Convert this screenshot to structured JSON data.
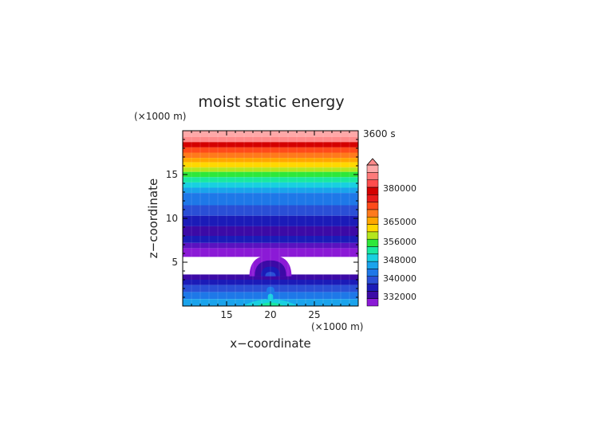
{
  "chart_data": {
    "type": "heatmap",
    "title": "moist static energy",
    "xlabel": "x−coordinate",
    "ylabel": "z−coordinate",
    "x_unit": "(×1000 m)",
    "y_unit": "(×1000 m)",
    "time_label": "3600 s",
    "xlim": [
      10,
      30
    ],
    "ylim": [
      0,
      20
    ],
    "x_ticks": [
      "15",
      "20",
      "25"
    ],
    "y_ticks": [
      "5",
      "10",
      "15"
    ],
    "colorbar": {
      "tick_labels": [
        "380000",
        "365000",
        "356000",
        "348000",
        "340000",
        "332000"
      ],
      "colors": [
        "#8b1ad6",
        "#3c0aa6",
        "#1b1bb8",
        "#2a4fd6",
        "#1e78e8",
        "#1aa3ec",
        "#18d0e0",
        "#19e8a0",
        "#2ee83a",
        "#b4e61e",
        "#ffd800",
        "#ffa600",
        "#ff7a1c",
        "#ff4a1a",
        "#e81a1a",
        "#d40000",
        "#ff4d4d",
        "#ff7a7a",
        "#ffa8a8"
      ],
      "extend": "max"
    },
    "bands": [
      {
        "z0": 19.3,
        "z1": 20.0,
        "color": "#ffa8a8"
      },
      {
        "z0": 18.7,
        "z1": 19.3,
        "color": "#ff8a8a"
      },
      {
        "z0": 18.1,
        "z1": 18.7,
        "color": "#d40000"
      },
      {
        "z0": 17.5,
        "z1": 18.1,
        "color": "#ff4a1a"
      },
      {
        "z0": 16.9,
        "z1": 17.5,
        "color": "#ff7a1c"
      },
      {
        "z0": 16.4,
        "z1": 16.9,
        "color": "#ffa600"
      },
      {
        "z0": 15.8,
        "z1": 16.4,
        "color": "#ffd800"
      },
      {
        "z0": 15.3,
        "z1": 15.8,
        "color": "#b4e61e"
      },
      {
        "z0": 14.7,
        "z1": 15.3,
        "color": "#2ee83a"
      },
      {
        "z0": 14.1,
        "z1": 14.7,
        "color": "#19e8a0"
      },
      {
        "z0": 13.5,
        "z1": 14.1,
        "color": "#18d0e0"
      },
      {
        "z0": 12.9,
        "z1": 13.5,
        "color": "#1aa3ec"
      },
      {
        "z0": 11.5,
        "z1": 12.9,
        "color": "#1e78e8"
      },
      {
        "z0": 10.3,
        "z1": 11.5,
        "color": "#2a4fd6"
      },
      {
        "z0": 9.1,
        "z1": 10.3,
        "color": "#1b1bb8"
      },
      {
        "z0": 8.0,
        "z1": 9.1,
        "color": "#3c0aa6"
      },
      {
        "z0": 7.2,
        "z1": 8.0,
        "color": "#1b1bb8"
      },
      {
        "z0": 6.6,
        "z1": 7.2,
        "color": "#5a12c0"
      },
      {
        "z0": 5.6,
        "z1": 6.6,
        "color": "#8b1ad6"
      },
      {
        "z0": 3.6,
        "z1": 5.6,
        "color": "#ffffff"
      },
      {
        "z0": 3.0,
        "z1": 3.6,
        "color": "#3c0aa6"
      },
      {
        "z0": 2.4,
        "z1": 3.0,
        "color": "#1b1bb8"
      },
      {
        "z0": 1.6,
        "z1": 2.4,
        "color": "#2a4fd6"
      },
      {
        "z0": 0.8,
        "z1": 1.6,
        "color": "#1e78e8"
      },
      {
        "z0": 0.0,
        "z1": 0.8,
        "color": "#1aa3ec"
      }
    ],
    "plume": {
      "x_center": 20.0,
      "layers": [
        {
          "half_width": 2.4,
          "top": 5.8,
          "color": "#8b1ad6"
        },
        {
          "half_width": 1.8,
          "top": 5.2,
          "color": "#3c0aa6"
        },
        {
          "half_width": 1.1,
          "top": 4.5,
          "color": "#1b1bb8"
        },
        {
          "half_width": 0.6,
          "top": 3.9,
          "color": "#2a4fd6"
        },
        {
          "half_width": 0.45,
          "top": 2.2,
          "color": "#1e78e8"
        },
        {
          "half_width": 0.3,
          "top": 1.4,
          "color": "#18d0e0"
        },
        {
          "half_width": 0.15,
          "top": 0.8,
          "color": "#19e8a0"
        }
      ],
      "base_spread": [
        {
          "half_width": 3.2,
          "top": 1.0,
          "color": "#18d0e0"
        },
        {
          "half_width": 1.6,
          "top": 0.5,
          "color": "#19e8a0"
        }
      ]
    }
  }
}
